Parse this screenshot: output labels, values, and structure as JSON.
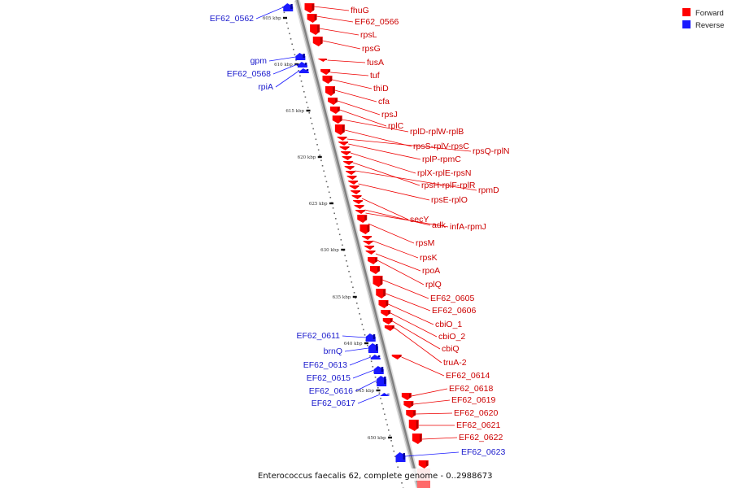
{
  "caption": "Enterococcus faecalis 62, complete genome - 0..2988673",
  "legend": [
    {
      "label": "Forward",
      "color": "#ff0000"
    },
    {
      "label": "Reverse",
      "color": "#1a1aff"
    }
  ],
  "colors": {
    "forward_label": "#cc0000",
    "reverse_label": "#1a1acc",
    "backbone": "#7f7f7f"
  },
  "ticks": [
    "605 kbp",
    "610 kbp",
    "615 kbp",
    "620 kbp",
    "625 kbp",
    "630 kbp",
    "635 kbp",
    "640 kbp",
    "645 kbp",
    "650 kbp"
  ],
  "forward_genes": [
    "fhuG",
    "EF62_0566",
    "rpsL",
    "rpsG",
    "fusA",
    "tuf",
    "thiD",
    "cfa",
    "rpsJ",
    "rplC",
    "rplD-rplW-rplB",
    "rpsS-rplV-rpsC",
    "rpsQ-rplN",
    "rplP-rpmC",
    "rplX-rplE-rpsN",
    "rpsH-rplF-rplR",
    "rpmD",
    "rpsE-rplO",
    "secY",
    "adk",
    "infA-rpmJ",
    "rpsM",
    "rpsK",
    "rpoA",
    "rplQ",
    "EF62_0605",
    "EF62_0606",
    "cbiO_1",
    "cbiO_2",
    "cbiQ",
    "truA-2",
    "EF62_0614",
    "EF62_0618",
    "EF62_0619",
    "EF62_0620",
    "EF62_0621",
    "EF62_0622"
  ],
  "reverse_genes": [
    "EF62_0562",
    "gpm",
    "EF62_0568",
    "rpiA",
    "EF62_0611",
    "brnQ",
    "EF62_0613",
    "EF62_0615",
    "EF62_0616",
    "EF62_0617",
    "EF62_0623"
  ]
}
